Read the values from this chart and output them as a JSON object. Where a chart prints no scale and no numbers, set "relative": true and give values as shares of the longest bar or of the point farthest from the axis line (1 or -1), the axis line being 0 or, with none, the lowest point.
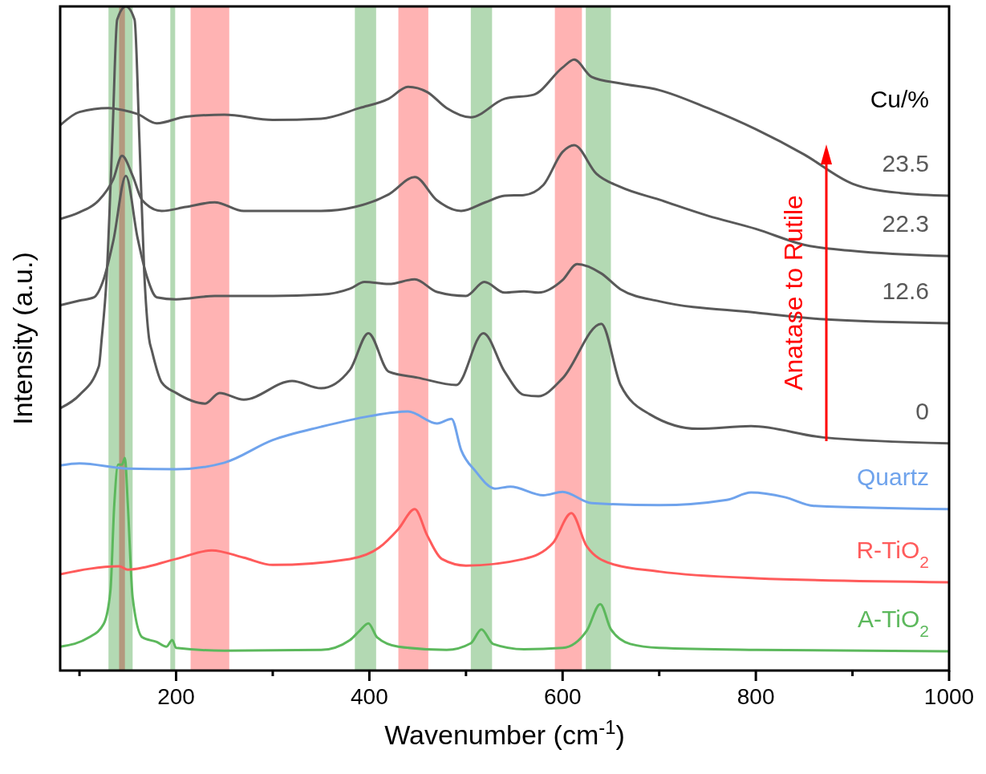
{
  "chart_data": {
    "type": "line",
    "relative": true,
    "xlabel": "Wavenumber (cm$^{-1}$)",
    "ylabel": "Intensity (a.u.)",
    "legend_title": "Cu/%",
    "xlim": [
      80,
      1000
    ],
    "xticks": [
      {
        "value": 100,
        "label": null
      },
      200,
      {
        "value": 300,
        "label": null
      },
      400,
      {
        "value": 500,
        "label": null
      },
      600,
      {
        "value": 700,
        "label": null
      },
      800,
      {
        "value": 900,
        "label": null
      },
      1000
    ],
    "annotations": [
      "Anatase to Rutile"
    ],
    "bands": [
      {
        "axis": "x",
        "from": 130,
        "to": 155,
        "label": null,
        "color": "#b3d9b3"
      },
      {
        "axis": "x",
        "from": 141,
        "to": 147,
        "label": null,
        "color": "#ffb3b3"
      },
      {
        "axis": "x",
        "from": 194,
        "to": 199,
        "label": null,
        "color": "#b3d9b3"
      },
      {
        "axis": "x",
        "from": 215,
        "to": 255,
        "label": null,
        "color": "#ffb3b3"
      },
      {
        "axis": "x",
        "from": 385,
        "to": 407,
        "label": null,
        "color": "#b3d9b3"
      },
      {
        "axis": "x",
        "from": 430,
        "to": 461,
        "label": null,
        "color": "#ffb3b3"
      },
      {
        "axis": "x",
        "from": 505,
        "to": 527,
        "label": null,
        "color": "#b3d9b3"
      },
      {
        "axis": "x",
        "from": 592,
        "to": 620,
        "label": null,
        "color": "#ffb3b3"
      },
      {
        "axis": "x",
        "from": 624,
        "to": 650,
        "label": null,
        "color": "#b3d9b3"
      }
    ],
    "series": [
      {
        "name": "A-TiO$_{2}$",
        "color": "#5cb85c",
        "x": [
          80,
          110,
          125,
          132,
          136,
          140,
          144,
          147,
          150,
          155,
          165,
          180,
          190,
          196,
          200,
          250,
          350,
          380,
          390,
          399,
          408,
          430,
          480,
          505,
          516,
          528,
          560,
          600,
          625,
          639,
          650,
          670,
          700,
          800,
          1000
        ],
        "values": [
          0.036,
          0.05,
          0.07,
          0.12,
          0.25,
          0.31,
          0.31,
          0.32,
          0.25,
          0.11,
          0.05,
          0.043,
          0.036,
          0.046,
          0.034,
          0.03,
          0.031,
          0.046,
          0.06,
          0.071,
          0.05,
          0.036,
          0.031,
          0.041,
          0.062,
          0.04,
          0.032,
          0.034,
          0.06,
          0.1,
          0.062,
          0.04,
          0.034,
          0.031,
          0.029
        ]
      },
      {
        "name": "R-TiO$_{2}$",
        "color": "#ff5b5b",
        "x": [
          80,
          141,
          150,
          200,
          237,
          270,
          300,
          380,
          410,
          430,
          447,
          460,
          475,
          500,
          560,
          590,
          609,
          625,
          650,
          700,
          800,
          1000
        ],
        "values": [
          0.145,
          0.157,
          0.152,
          0.168,
          0.181,
          0.17,
          0.159,
          0.168,
          0.185,
          0.213,
          0.243,
          0.203,
          0.168,
          0.158,
          0.168,
          0.192,
          0.237,
          0.187,
          0.161,
          0.149,
          0.139,
          0.133
        ]
      },
      {
        "name": "Quartz",
        "color": "#6fa3ec",
        "x": [
          80,
          100,
          150,
          200,
          250,
          300,
          350,
          400,
          440,
          470,
          485,
          495,
          510,
          530,
          546,
          580,
          600,
          630,
          700,
          770,
          795,
          830,
          860,
          1000
        ],
        "values": [
          0.309,
          0.312,
          0.304,
          0.303,
          0.313,
          0.347,
          0.367,
          0.383,
          0.39,
          0.372,
          0.379,
          0.332,
          0.3,
          0.274,
          0.277,
          0.264,
          0.269,
          0.252,
          0.249,
          0.257,
          0.268,
          0.261,
          0.248,
          0.243
        ]
      },
      {
        "name": "0",
        "color": "#595959",
        "x": [
          80,
          100,
          120,
          123,
          128,
          134,
          139,
          148,
          157,
          162,
          167,
          172,
          175,
          185,
          200,
          230,
          245,
          270,
          320,
          350,
          380,
          399,
          420,
          450,
          490,
          518,
          540,
          560,
          575,
          600,
          640,
          660,
          690,
          740,
          795,
          870,
          1000
        ],
        "values": [
          0.395,
          0.415,
          0.458,
          0.5,
          0.59,
          0.8,
          0.98,
          1,
          0.98,
          0.8,
          0.6,
          0.5,
          0.481,
          0.434,
          0.418,
          0.402,
          0.418,
          0.408,
          0.436,
          0.425,
          0.453,
          0.508,
          0.45,
          0.441,
          0.43,
          0.508,
          0.45,
          0.415,
          0.413,
          0.44,
          0.522,
          0.43,
          0.386,
          0.364,
          0.368,
          0.351,
          0.342
        ]
      },
      {
        "name": "12.6",
        "color": "#595959",
        "x": [
          80,
          100,
          115,
          125,
          135,
          148,
          160,
          170,
          180,
          200,
          240,
          300,
          350,
          380,
          395,
          420,
          447,
          470,
          500,
          519,
          540,
          560,
          575,
          600,
          615,
          640,
          660,
          700,
          800,
          870,
          1000
        ],
        "values": [
          0.55,
          0.557,
          0.562,
          0.589,
          0.647,
          0.745,
          0.652,
          0.592,
          0.562,
          0.559,
          0.564,
          0.564,
          0.566,
          0.575,
          0.585,
          0.582,
          0.589,
          0.57,
          0.564,
          0.585,
          0.569,
          0.571,
          0.569,
          0.588,
          0.612,
          0.598,
          0.574,
          0.556,
          0.539,
          0.529,
          0.523
        ]
      },
      {
        "name": "22.3",
        "color": "#595959",
        "x": [
          80,
          100,
          120,
          135,
          144,
          155,
          165,
          185,
          210,
          240,
          270,
          300,
          350,
          385,
          420,
          447,
          470,
          495,
          520,
          540,
          560,
          580,
          600,
          612,
          635,
          660,
          700,
          750,
          800,
          850,
          900,
          1000
        ],
        "values": [
          0.68,
          0.69,
          0.708,
          0.74,
          0.775,
          0.745,
          0.708,
          0.692,
          0.698,
          0.705,
          0.692,
          0.692,
          0.692,
          0.698,
          0.717,
          0.743,
          0.708,
          0.692,
          0.705,
          0.715,
          0.716,
          0.731,
          0.781,
          0.791,
          0.748,
          0.728,
          0.709,
          0.685,
          0.665,
          0.641,
          0.632,
          0.624
        ]
      },
      {
        "name": "23.5",
        "color": "#595959",
        "x": [
          80,
          100,
          130,
          145,
          160,
          180,
          210,
          250,
          300,
          350,
          390,
          420,
          440,
          460,
          480,
          505,
          540,
          570,
          600,
          612,
          630,
          660,
          700,
          750,
          800,
          850,
          900,
          950,
          1000
        ],
        "values": [
          0.821,
          0.841,
          0.847,
          0.844,
          0.838,
          0.824,
          0.834,
          0.837,
          0.829,
          0.831,
          0.847,
          0.861,
          0.879,
          0.871,
          0.847,
          0.833,
          0.861,
          0.867,
          0.908,
          0.92,
          0.894,
          0.884,
          0.874,
          0.847,
          0.815,
          0.777,
          0.733,
          0.719,
          0.715
        ]
      }
    ]
  }
}
